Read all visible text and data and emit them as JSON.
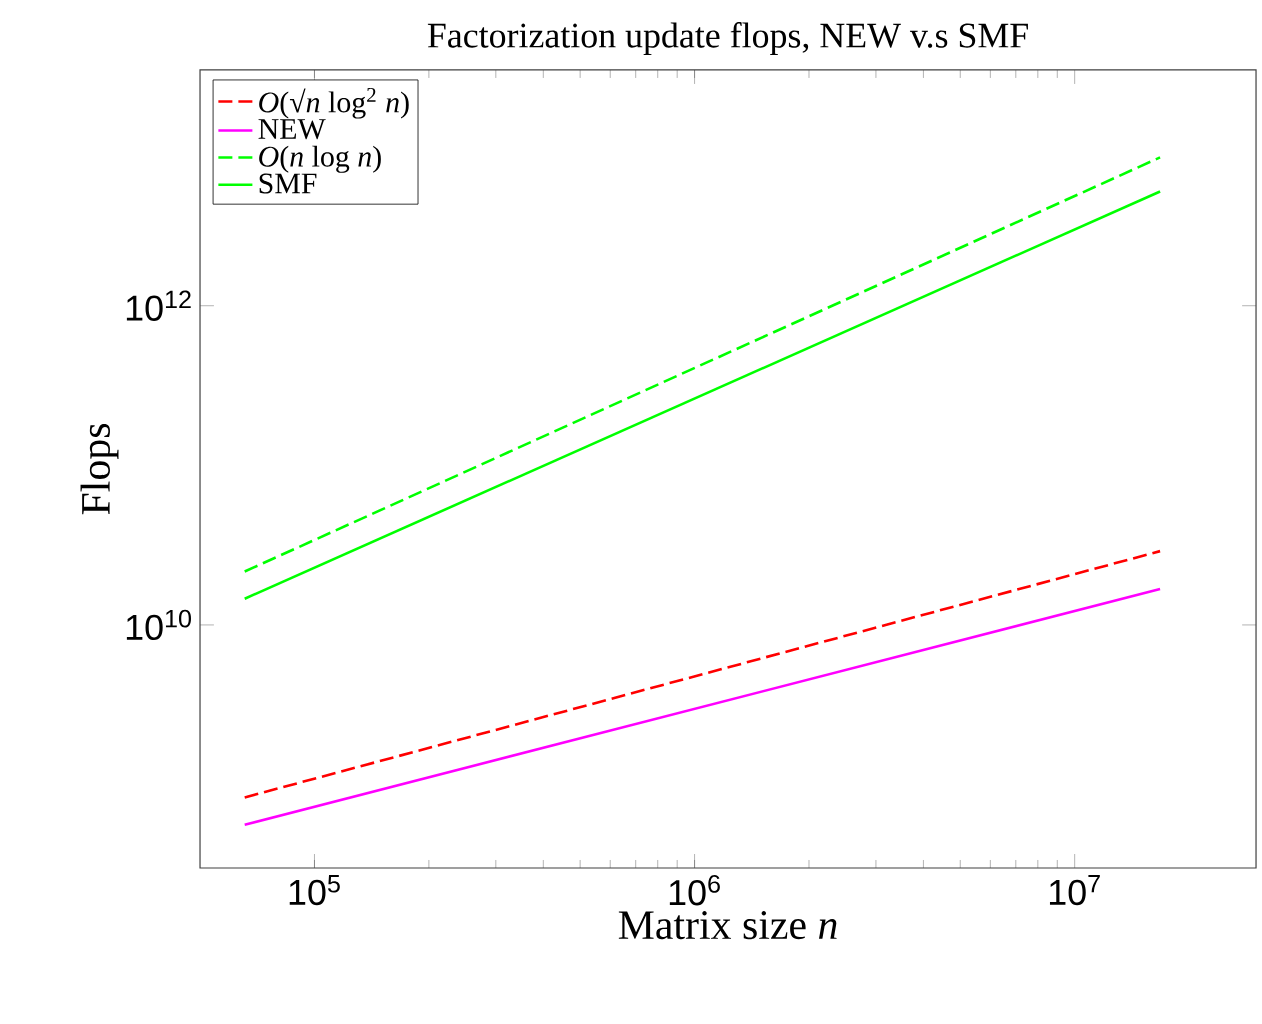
{
  "chart_data": {
    "type": "line",
    "title": "Factorization update flops, NEW v.s SMF",
    "xlabel": "Matrix size *n*",
    "ylabel": "Flops",
    "log": "xy",
    "grid": false,
    "legend": "top left",
    "marker": "none",
    "xlim": [
      50000,
      30000000
    ],
    "ylim": [
      300000000,
      30000000000000
    ],
    "xticks": [
      {
        "value": 100000,
        "label": "10$^{5}$"
      },
      {
        "value": 1000000,
        "label": "10$^{6}$"
      },
      {
        "value": 10000000,
        "label": "10$^{7}$"
      }
    ],
    "yticks": [
      {
        "value": 10000000000,
        "label": "10$^{10}$"
      },
      {
        "value": 1000000000000,
        "label": "10$^{12}$"
      }
    ],
    "x": [
      65536,
      16777216
    ],
    "series": [
      {
        "name": "*O*(√*n* log$^{2}$ *n*)",
        "color": "#ff0000",
        "line_style": "dashed",
        "values": [
          830000000,
          29000000000
        ]
      },
      {
        "name": "NEW",
        "color": "#ff00ff",
        "line_style": "solid",
        "values": [
          560000000,
          16800000000
        ]
      },
      {
        "name": "*O*(*n* log *n*)",
        "color": "#00ff00",
        "line_style": "dashed",
        "values": [
          21600000000,
          8500000000000
        ]
      },
      {
        "name": "SMF",
        "color": "#00ff00",
        "line_style": "solid",
        "values": [
          14600000000,
          5200000000000
        ]
      }
    ]
  }
}
